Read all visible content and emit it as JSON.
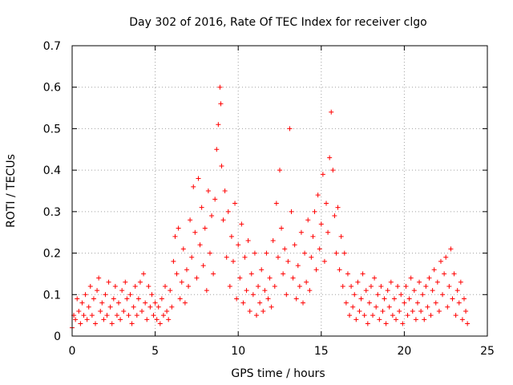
{
  "chart_data": {
    "type": "scatter",
    "title": "Day 302 of 2016, Rate Of TEC Index for receiver clgo",
    "xlabel": "GPS time / hours",
    "ylabel": "ROTI / TECUs",
    "xlim": [
      0,
      25
    ],
    "ylim": [
      0,
      0.7
    ],
    "x_ticks": [
      0,
      5,
      10,
      15,
      20,
      25
    ],
    "x_tick_labels": [
      "0",
      "5",
      "10",
      "15",
      "20",
      "25"
    ],
    "y_ticks": [
      0,
      0.1,
      0.2,
      0.3,
      0.4,
      0.5,
      0.6,
      0.7
    ],
    "y_tick_labels": [
      "0",
      "0.1",
      "0.2",
      "0.3",
      "0.4",
      "0.5",
      "0.6",
      "0.7"
    ],
    "grid": true,
    "marker": "+",
    "color": "#ff0000",
    "series": [
      {
        "name": "ROTI",
        "points": [
          [
            0.0,
            0.02
          ],
          [
            0.1,
            0.05
          ],
          [
            0.2,
            0.04
          ],
          [
            0.3,
            0.09
          ],
          [
            0.4,
            0.06
          ],
          [
            0.5,
            0.03
          ],
          [
            0.6,
            0.08
          ],
          [
            0.7,
            0.05
          ],
          [
            0.8,
            0.1
          ],
          [
            0.9,
            0.04
          ],
          [
            1.0,
            0.07
          ],
          [
            1.1,
            0.12
          ],
          [
            1.2,
            0.05
          ],
          [
            1.3,
            0.09
          ],
          [
            1.4,
            0.03
          ],
          [
            1.5,
            0.11
          ],
          [
            1.6,
            0.14
          ],
          [
            1.7,
            0.06
          ],
          [
            1.8,
            0.08
          ],
          [
            1.9,
            0.04
          ],
          [
            2.0,
            0.1
          ],
          [
            2.1,
            0.05
          ],
          [
            2.2,
            0.13
          ],
          [
            2.3,
            0.07
          ],
          [
            2.4,
            0.03
          ],
          [
            2.5,
            0.09
          ],
          [
            2.6,
            0.12
          ],
          [
            2.7,
            0.05
          ],
          [
            2.8,
            0.08
          ],
          [
            2.9,
            0.04
          ],
          [
            3.0,
            0.11
          ],
          [
            3.1,
            0.06
          ],
          [
            3.2,
            0.13
          ],
          [
            3.3,
            0.09
          ],
          [
            3.4,
            0.05
          ],
          [
            3.5,
            0.1
          ],
          [
            3.6,
            0.03
          ],
          [
            3.7,
            0.07
          ],
          [
            3.8,
            0.12
          ],
          [
            3.9,
            0.05
          ],
          [
            4.0,
            0.09
          ],
          [
            4.1,
            0.13
          ],
          [
            4.2,
            0.06
          ],
          [
            4.3,
            0.15
          ],
          [
            4.4,
            0.08
          ],
          [
            4.5,
            0.04
          ],
          [
            4.6,
            0.12
          ],
          [
            4.7,
            0.07
          ],
          [
            4.8,
            0.1
          ],
          [
            4.9,
            0.05
          ],
          [
            5.0,
            0.08
          ],
          [
            5.1,
            0.04
          ],
          [
            5.2,
            0.07
          ],
          [
            5.3,
            0.03
          ],
          [
            5.4,
            0.09
          ],
          [
            5.5,
            0.05
          ],
          [
            5.6,
            0.12
          ],
          [
            5.7,
            0.06
          ],
          [
            5.8,
            0.04
          ],
          [
            5.9,
            0.11
          ],
          [
            6.0,
            0.07
          ],
          [
            6.1,
            0.18
          ],
          [
            6.2,
            0.24
          ],
          [
            6.3,
            0.15
          ],
          [
            6.4,
            0.26
          ],
          [
            6.5,
            0.09
          ],
          [
            6.6,
            0.13
          ],
          [
            6.7,
            0.21
          ],
          [
            6.8,
            0.08
          ],
          [
            6.9,
            0.16
          ],
          [
            7.0,
            0.12
          ],
          [
            7.1,
            0.28
          ],
          [
            7.2,
            0.19
          ],
          [
            7.3,
            0.36
          ],
          [
            7.4,
            0.25
          ],
          [
            7.5,
            0.14
          ],
          [
            7.6,
            0.38
          ],
          [
            7.7,
            0.22
          ],
          [
            7.8,
            0.31
          ],
          [
            7.9,
            0.17
          ],
          [
            8.0,
            0.26
          ],
          [
            8.1,
            0.11
          ],
          [
            8.2,
            0.35
          ],
          [
            8.3,
            0.2
          ],
          [
            8.4,
            0.29
          ],
          [
            8.5,
            0.15
          ],
          [
            8.6,
            0.33
          ],
          [
            8.7,
            0.45
          ],
          [
            8.8,
            0.51
          ],
          [
            8.9,
            0.6
          ],
          [
            8.95,
            0.56
          ],
          [
            9.0,
            0.41
          ],
          [
            9.1,
            0.28
          ],
          [
            9.2,
            0.35
          ],
          [
            9.3,
            0.19
          ],
          [
            9.4,
            0.3
          ],
          [
            9.5,
            0.12
          ],
          [
            9.6,
            0.24
          ],
          [
            9.7,
            0.18
          ],
          [
            9.8,
            0.32
          ],
          [
            9.9,
            0.09
          ],
          [
            10.0,
            0.22
          ],
          [
            10.1,
            0.14
          ],
          [
            10.2,
            0.27
          ],
          [
            10.3,
            0.08
          ],
          [
            10.4,
            0.19
          ],
          [
            10.5,
            0.11
          ],
          [
            10.6,
            0.23
          ],
          [
            10.7,
            0.06
          ],
          [
            10.8,
            0.15
          ],
          [
            10.9,
            0.1
          ],
          [
            11.0,
            0.2
          ],
          [
            11.1,
            0.05
          ],
          [
            11.2,
            0.12
          ],
          [
            11.3,
            0.08
          ],
          [
            11.4,
            0.16
          ],
          [
            11.5,
            0.06
          ],
          [
            11.6,
            0.11
          ],
          [
            11.7,
            0.2
          ],
          [
            11.8,
            0.09
          ],
          [
            11.9,
            0.14
          ],
          [
            12.0,
            0.07
          ],
          [
            12.1,
            0.23
          ],
          [
            12.2,
            0.12
          ],
          [
            12.3,
            0.32
          ],
          [
            12.4,
            0.19
          ],
          [
            12.5,
            0.4
          ],
          [
            12.6,
            0.26
          ],
          [
            12.7,
            0.15
          ],
          [
            12.8,
            0.21
          ],
          [
            12.9,
            0.1
          ],
          [
            13.0,
            0.18
          ],
          [
            13.1,
            0.5
          ],
          [
            13.2,
            0.3
          ],
          [
            13.3,
            0.14
          ],
          [
            13.4,
            0.22
          ],
          [
            13.5,
            0.09
          ],
          [
            13.6,
            0.17
          ],
          [
            13.7,
            0.12
          ],
          [
            13.8,
            0.25
          ],
          [
            13.9,
            0.08
          ],
          [
            14.0,
            0.2
          ],
          [
            14.1,
            0.13
          ],
          [
            14.2,
            0.28
          ],
          [
            14.3,
            0.11
          ],
          [
            14.4,
            0.19
          ],
          [
            14.5,
            0.24
          ],
          [
            14.6,
            0.3
          ],
          [
            14.7,
            0.16
          ],
          [
            14.8,
            0.34
          ],
          [
            14.9,
            0.21
          ],
          [
            15.0,
            0.27
          ],
          [
            15.1,
            0.39
          ],
          [
            15.2,
            0.18
          ],
          [
            15.3,
            0.32
          ],
          [
            15.4,
            0.25
          ],
          [
            15.5,
            0.43
          ],
          [
            15.6,
            0.54
          ],
          [
            15.7,
            0.4
          ],
          [
            15.8,
            0.29
          ],
          [
            15.9,
            0.2
          ],
          [
            16.0,
            0.31
          ],
          [
            16.1,
            0.16
          ],
          [
            16.2,
            0.24
          ],
          [
            16.3,
            0.12
          ],
          [
            16.4,
            0.2
          ],
          [
            16.5,
            0.08
          ],
          [
            16.6,
            0.15
          ],
          [
            16.7,
            0.05
          ],
          [
            16.8,
            0.12
          ],
          [
            16.9,
            0.07
          ],
          [
            17.0,
            0.1
          ],
          [
            17.1,
            0.04
          ],
          [
            17.2,
            0.13
          ],
          [
            17.3,
            0.06
          ],
          [
            17.4,
            0.09
          ],
          [
            17.5,
            0.15
          ],
          [
            17.6,
            0.05
          ],
          [
            17.7,
            0.11
          ],
          [
            17.8,
            0.03
          ],
          [
            17.9,
            0.08
          ],
          [
            18.0,
            0.12
          ],
          [
            18.1,
            0.05
          ],
          [
            18.2,
            0.14
          ],
          [
            18.3,
            0.07
          ],
          [
            18.4,
            0.1
          ],
          [
            18.5,
            0.04
          ],
          [
            18.6,
            0.12
          ],
          [
            18.7,
            0.06
          ],
          [
            18.8,
            0.09
          ],
          [
            18.9,
            0.03
          ],
          [
            19.0,
            0.11
          ],
          [
            19.1,
            0.07
          ],
          [
            19.2,
            0.13
          ],
          [
            19.3,
            0.05
          ],
          [
            19.4,
            0.09
          ],
          [
            19.5,
            0.04
          ],
          [
            19.6,
            0.12
          ],
          [
            19.7,
            0.06
          ],
          [
            19.8,
            0.1
          ],
          [
            19.9,
            0.03
          ],
          [
            20.0,
            0.08
          ],
          [
            20.1,
            0.12
          ],
          [
            20.2,
            0.05
          ],
          [
            20.3,
            0.09
          ],
          [
            20.4,
            0.14
          ],
          [
            20.5,
            0.06
          ],
          [
            20.6,
            0.11
          ],
          [
            20.7,
            0.04
          ],
          [
            20.8,
            0.08
          ],
          [
            20.9,
            0.13
          ],
          [
            21.0,
            0.06
          ],
          [
            21.1,
            0.1
          ],
          [
            21.2,
            0.04
          ],
          [
            21.3,
            0.12
          ],
          [
            21.4,
            0.07
          ],
          [
            21.5,
            0.14
          ],
          [
            21.6,
            0.05
          ],
          [
            21.7,
            0.11
          ],
          [
            21.8,
            0.16
          ],
          [
            21.9,
            0.08
          ],
          [
            22.0,
            0.13
          ],
          [
            22.1,
            0.06
          ],
          [
            22.2,
            0.18
          ],
          [
            22.3,
            0.1
          ],
          [
            22.4,
            0.15
          ],
          [
            22.5,
            0.19
          ],
          [
            22.6,
            0.07
          ],
          [
            22.7,
            0.12
          ],
          [
            22.8,
            0.21
          ],
          [
            22.9,
            0.09
          ],
          [
            23.0,
            0.15
          ],
          [
            23.1,
            0.05
          ],
          [
            23.2,
            0.11
          ],
          [
            23.3,
            0.08
          ],
          [
            23.4,
            0.13
          ],
          [
            23.5,
            0.04
          ],
          [
            23.6,
            0.09
          ],
          [
            23.7,
            0.06
          ],
          [
            23.8,
            0.03
          ]
        ]
      }
    ]
  }
}
